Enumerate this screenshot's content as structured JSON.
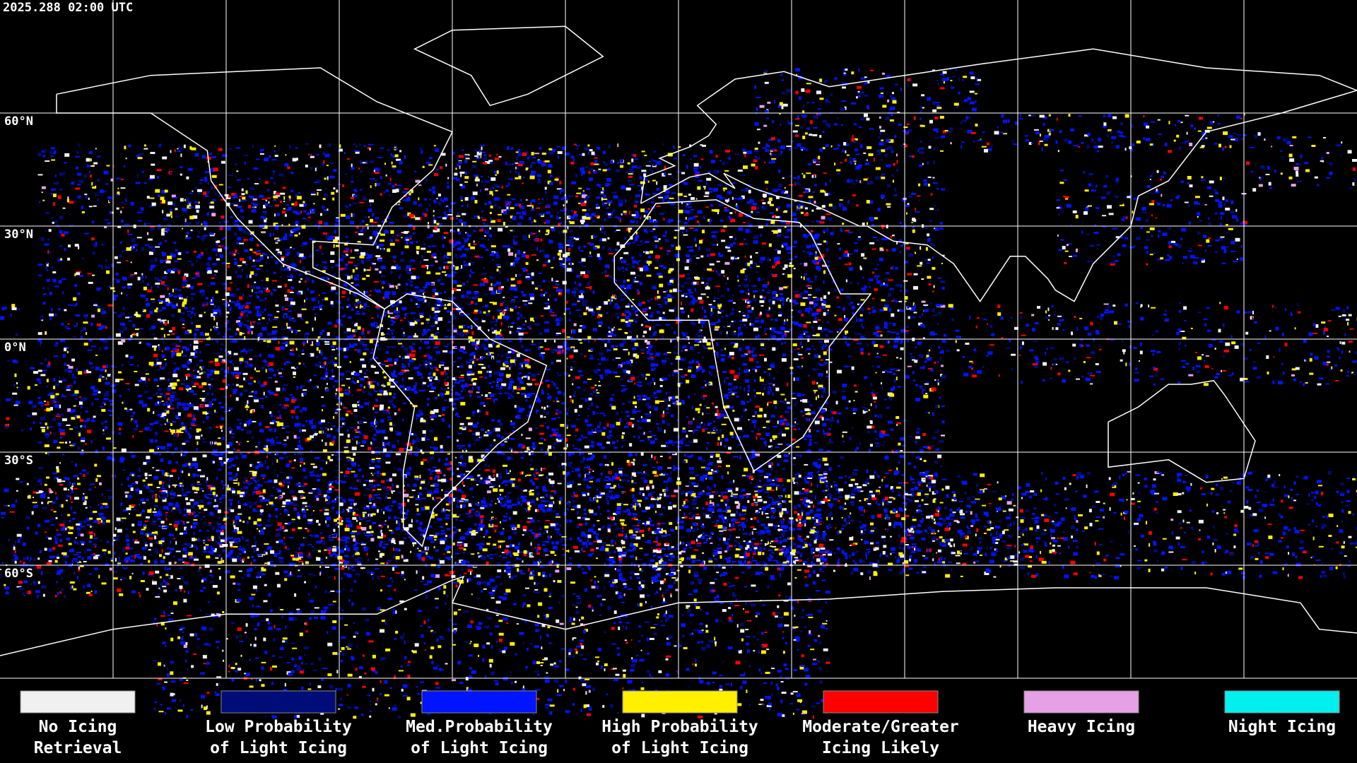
{
  "timestamp": "2025.288 02:00 UTC",
  "latitude_labels": [
    "60°N",
    "30°N",
    "0°N",
    "30°S",
    "60°S"
  ],
  "legend": [
    {
      "lines": [
        "No Icing",
        "Retrieval"
      ],
      "color": "#f0f0f0"
    },
    {
      "lines": [
        "Low Probability",
        "of Light Icing"
      ],
      "color": "#000c78"
    },
    {
      "lines": [
        "Med.Probability",
        "of Light Icing"
      ],
      "color": "#0014ff"
    },
    {
      "lines": [
        "High Probability",
        "of Light Icing"
      ],
      "color": "#fff000"
    },
    {
      "lines": [
        "Moderate/Greater",
        "Icing Likely"
      ],
      "color": "#ff0000"
    },
    {
      "lines": [
        "Heavy Icing"
      ],
      "color": "#e6a0e6"
    },
    {
      "lines": [
        "Night Icing"
      ],
      "color": "#00f0f0"
    }
  ]
}
